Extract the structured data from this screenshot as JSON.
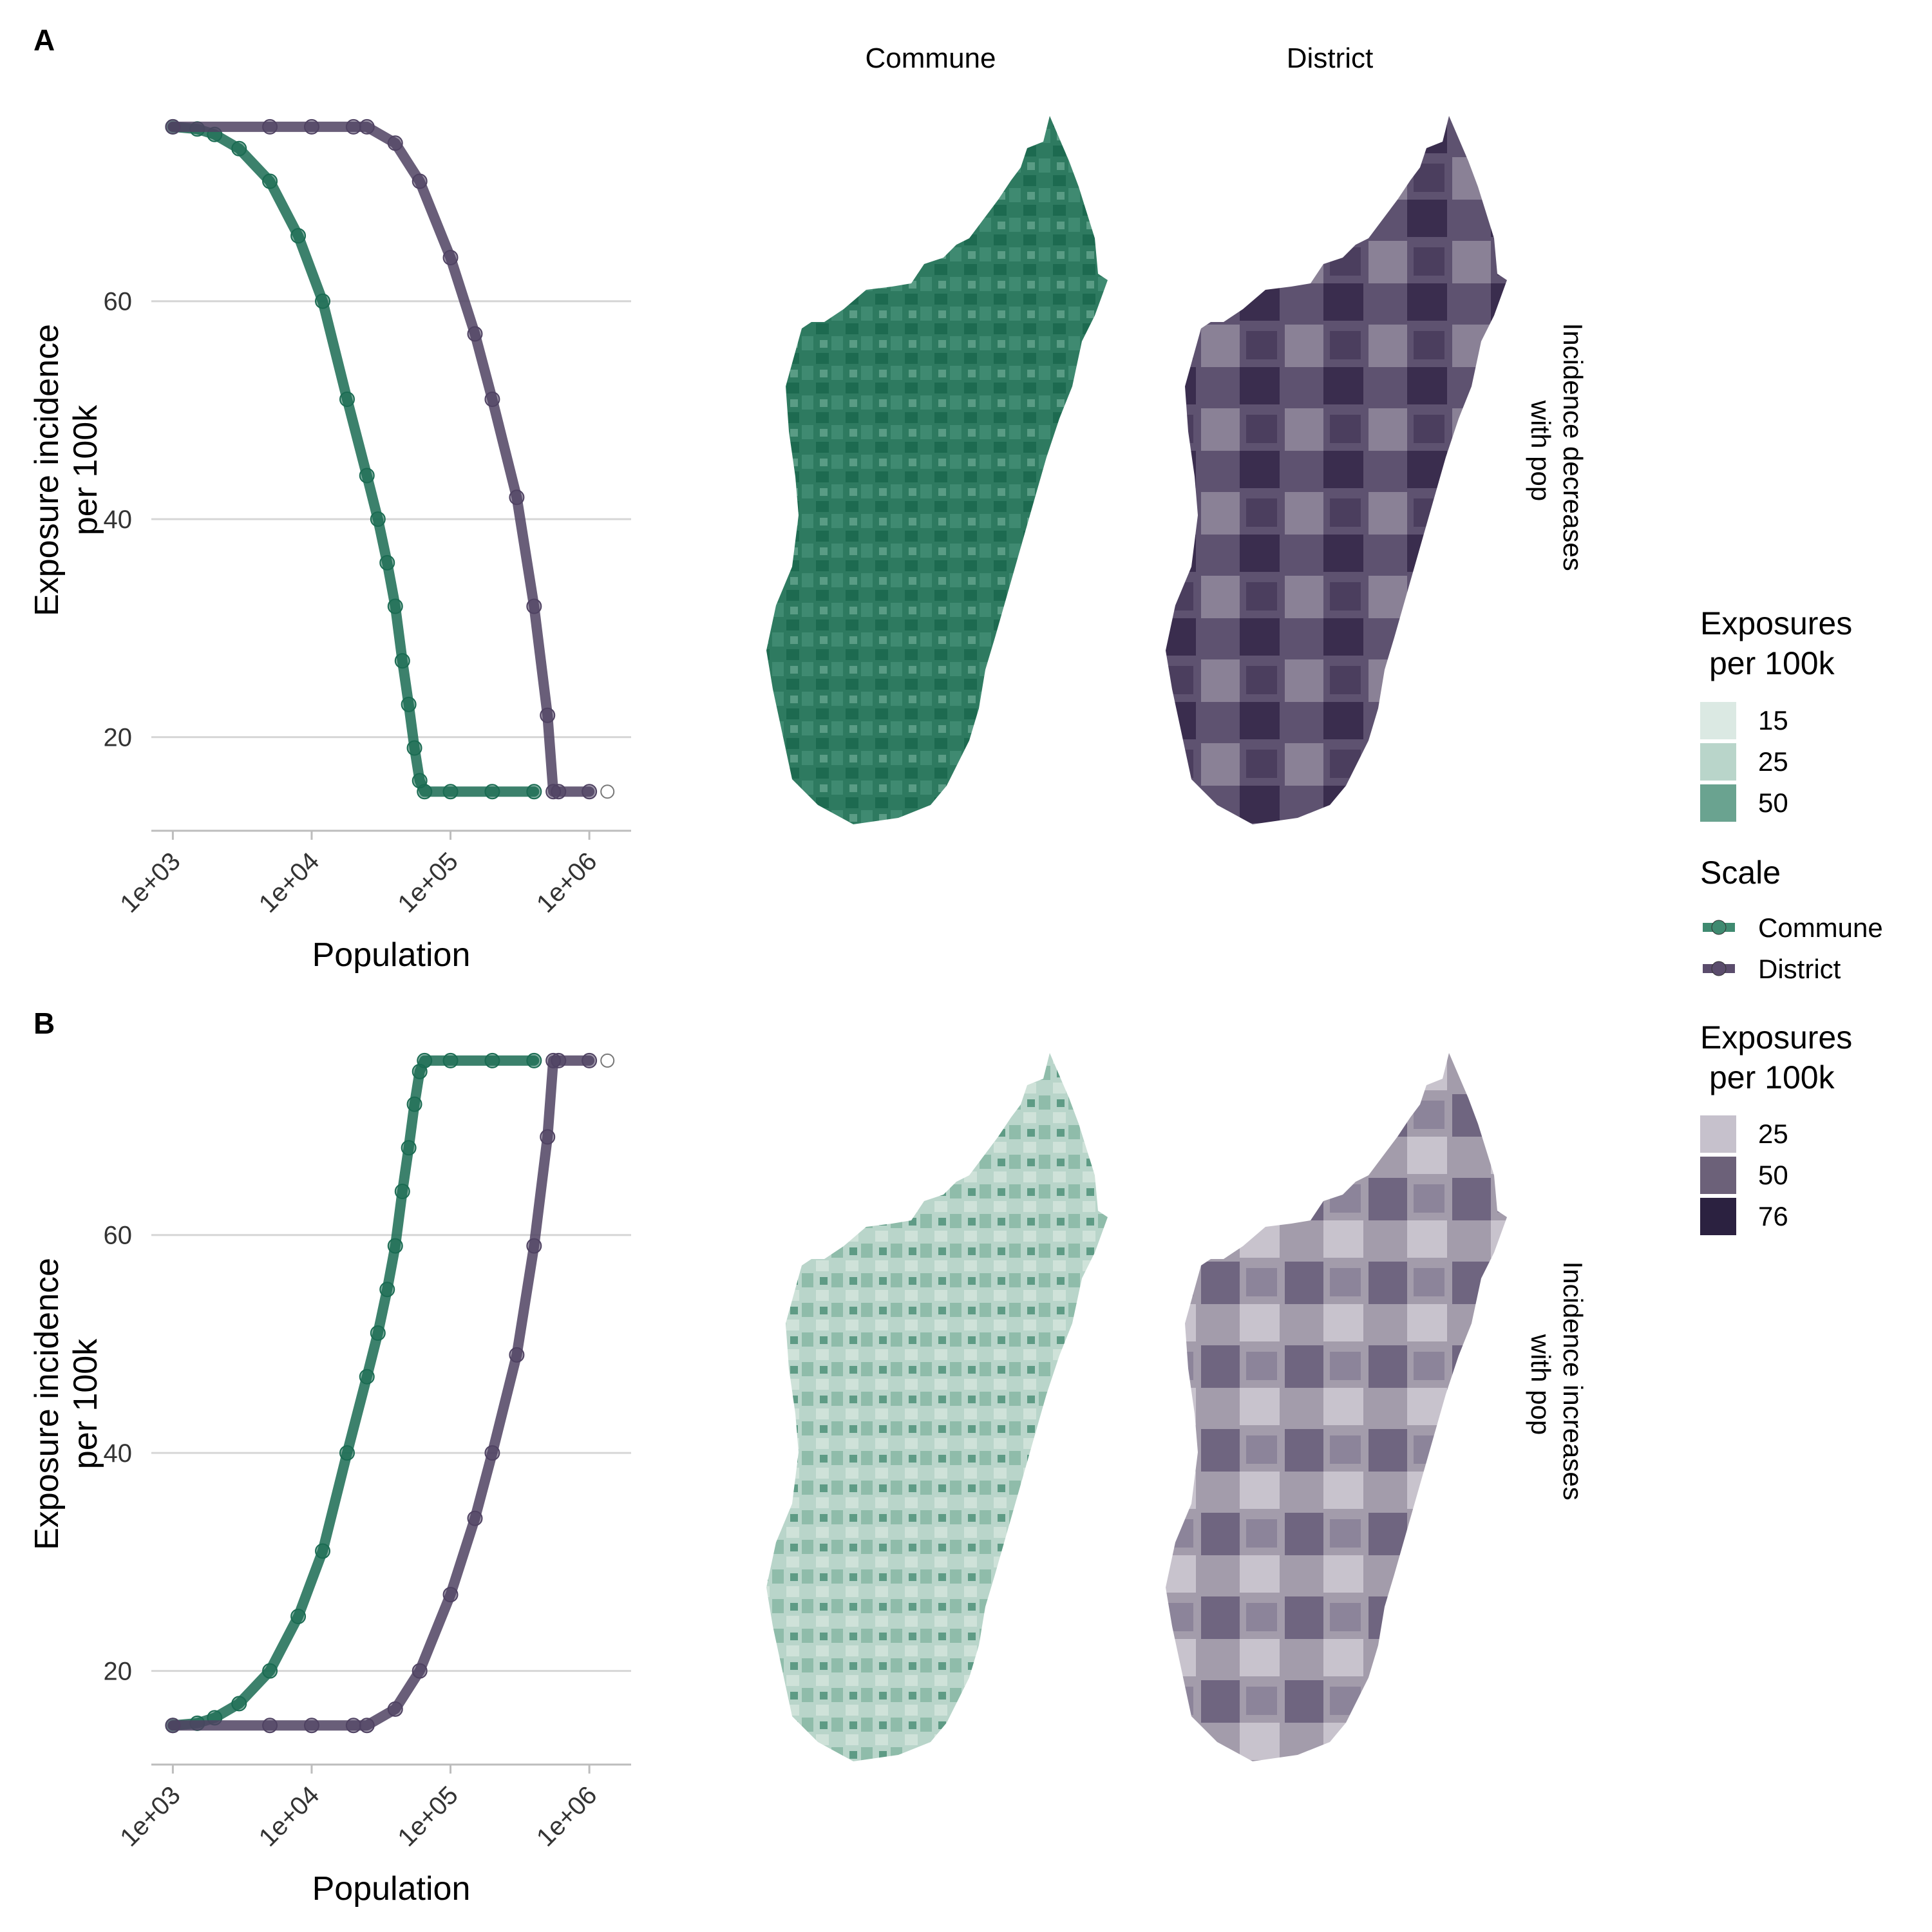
{
  "panels": [
    {
      "letter": "A",
      "strip_label": "Incidence decreases\nwith pop"
    },
    {
      "letter": "B",
      "strip_label": "Incidence increases\nwith pop"
    }
  ],
  "facets": {
    "commune": "Commune",
    "district": "District"
  },
  "colors": {
    "commune": "#1a6b52",
    "district": "#4f4262",
    "grid": "#d6d6d6",
    "axis": "#bdbdbd",
    "commune_scale": [
      "#dbe9e3",
      "#b9d5ca",
      "#6aa390",
      "#1a6b52"
    ],
    "district_scale": [
      "#c6c1cc",
      "#6c6179",
      "#2b2140"
    ]
  },
  "chart_data": [
    {
      "type": "scatter",
      "panel": "A",
      "xlabel": "Population",
      "ylabel": "Exposure incidence\nper 100k",
      "x_scale": "log10",
      "x_ticks": [
        1000,
        10000,
        100000,
        1000000
      ],
      "x_tick_labels": [
        "1e+03",
        "1e+04",
        "1e+05",
        "1e+06"
      ],
      "xlim": [
        700,
        2000000
      ],
      "y_ticks": [
        20,
        40,
        60
      ],
      "ylim": [
        12,
        77
      ],
      "grid": "horizontal",
      "series": [
        {
          "name": "Commune",
          "x": [
            1000,
            1500,
            2000,
            3000,
            5000,
            8000,
            12000,
            18000,
            25000,
            30000,
            35000,
            40000,
            45000,
            50000,
            55000,
            60000,
            65000,
            100000,
            200000,
            400000
          ],
          "y": [
            76,
            75.8,
            75.3,
            74,
            71,
            66,
            60,
            51,
            44,
            40,
            36,
            32,
            27,
            23,
            19,
            16,
            15,
            15,
            15,
            15
          ]
        },
        {
          "name": "District",
          "x": [
            1000,
            5000,
            10000,
            20000,
            25000,
            40000,
            60000,
            100000,
            150000,
            200000,
            300000,
            400000,
            500000,
            550000,
            600000,
            1000000
          ],
          "y": [
            76,
            76,
            76,
            76,
            76,
            74.5,
            71,
            64,
            57,
            51,
            42,
            32,
            22,
            15,
            15,
            15
          ]
        }
      ],
      "outlier": {
        "x": 1350000,
        "y": 15
      }
    },
    {
      "type": "scatter",
      "panel": "B",
      "xlabel": "Population",
      "ylabel": "Exposure incidence\nper 100k",
      "x_scale": "log10",
      "x_ticks": [
        1000,
        10000,
        100000,
        1000000
      ],
      "x_tick_labels": [
        "1e+03",
        "1e+04",
        "1e+05",
        "1e+06"
      ],
      "xlim": [
        700,
        2000000
      ],
      "y_ticks": [
        20,
        40,
        60
      ],
      "ylim": [
        12,
        77
      ],
      "grid": "horizontal",
      "series": [
        {
          "name": "Commune",
          "x": [
            1000,
            1500,
            2000,
            3000,
            5000,
            8000,
            12000,
            18000,
            25000,
            30000,
            35000,
            40000,
            45000,
            50000,
            55000,
            60000,
            65000,
            100000,
            200000,
            400000
          ],
          "y": [
            15,
            15.2,
            15.7,
            17,
            20,
            25,
            31,
            40,
            47,
            51,
            55,
            59,
            64,
            68,
            72,
            75,
            76,
            76,
            76,
            76
          ]
        },
        {
          "name": "District",
          "x": [
            1000,
            5000,
            10000,
            20000,
            25000,
            40000,
            60000,
            100000,
            150000,
            200000,
            300000,
            400000,
            500000,
            550000,
            600000,
            1000000
          ],
          "y": [
            15,
            15,
            15,
            15,
            15,
            16.5,
            20,
            27,
            34,
            40,
            49,
            59,
            69,
            76,
            76,
            76
          ]
        }
      ],
      "outlier": {
        "x": 1350000,
        "y": 76
      }
    }
  ],
  "legends": [
    {
      "title": "Exposures\nper 100k",
      "keys": [
        "15",
        "25",
        "50"
      ],
      "colors": [
        "#dbe9e3",
        "#b9d5ca",
        "#6aa390"
      ]
    },
    {
      "title": "Scale",
      "keys": [
        "Commune",
        "District"
      ],
      "colors": [
        "#3f8a70",
        "#5a4c6c"
      ]
    },
    {
      "title": "Exposures\nper 100k",
      "keys": [
        "25",
        "50",
        "76"
      ],
      "colors": [
        "#c6c1cc",
        "#6c6179",
        "#2b2140"
      ]
    }
  ]
}
